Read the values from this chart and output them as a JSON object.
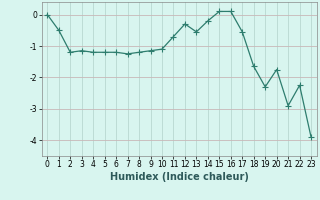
{
  "xlabel": "Humidex (Indice chaleur)",
  "x_values": [
    0,
    1,
    2,
    3,
    4,
    5,
    6,
    7,
    8,
    9,
    10,
    11,
    12,
    13,
    14,
    15,
    16,
    17,
    18,
    19,
    20,
    21,
    22,
    23
  ],
  "y_values": [
    0.0,
    -0.5,
    -1.2,
    -1.15,
    -1.2,
    -1.2,
    -1.2,
    -1.25,
    -1.2,
    -1.15,
    -1.1,
    -0.7,
    -0.3,
    -0.55,
    -0.2,
    0.1,
    0.1,
    -0.55,
    -1.65,
    -2.3,
    -1.75,
    -2.9,
    -2.25,
    -3.9
  ],
  "line_color": "#2e7d6e",
  "marker": "+",
  "marker_size": 4,
  "background_color": "#d8f5ef",
  "grid_color_h": "#c8b8b8",
  "grid_color_v": "#b8d8d0",
  "ylim": [
    -4.5,
    0.4
  ],
  "yticks": [
    0,
    -1,
    -2,
    -3,
    -4
  ],
  "xlim": [
    -0.5,
    23.5
  ],
  "xlabel_fontsize": 7,
  "tick_fontsize": 5.5
}
